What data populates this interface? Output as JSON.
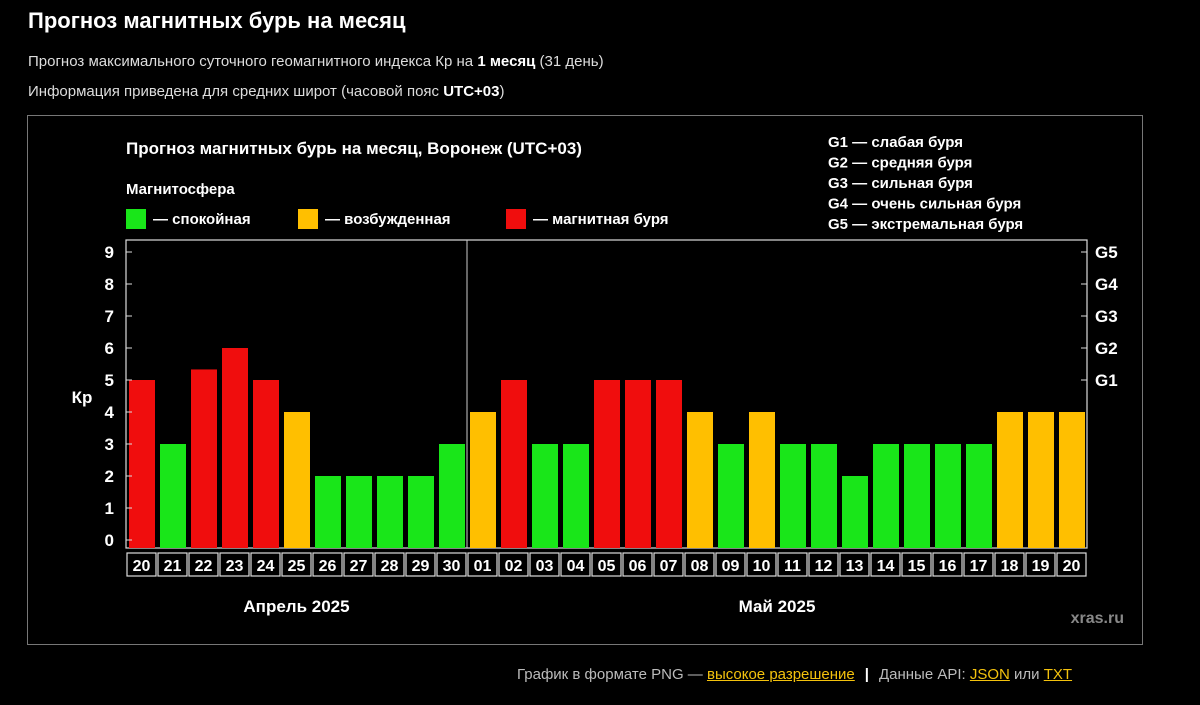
{
  "page": {
    "title": "Прогноз магнитных бурь на месяц",
    "sub1_pre": "Прогноз максимального суточного геомагнитного индекса Кр на ",
    "sub1_bold": "1 месяц",
    "sub1_post": " (31 день)",
    "sub2_pre": "Информация приведена для средних широт (часовой пояс ",
    "sub2_bold": "UTC+03",
    "sub2_post": ")"
  },
  "footer": {
    "png_text": "График в формате PNG — ",
    "png_link": "высокое разрешение",
    "sep": "|",
    "api_text": "Данные API: ",
    "json_link": "JSON",
    "or_text": " или ",
    "txt_link": "TXT"
  },
  "colors": {
    "calm": "#19e619",
    "excited": "#ffbf00",
    "storm": "#f00d0d"
  },
  "chart_data": {
    "type": "bar",
    "title": "Прогноз магнитных бурь на месяц, Воронеж (UTC+03)",
    "legend_title": "Магнитосфера",
    "legend": [
      {
        "label": "— спокойная",
        "status": "calm"
      },
      {
        "label": "— возбужденная",
        "status": "excited"
      },
      {
        "label": "— магнитная буря",
        "status": "storm"
      }
    ],
    "g_scale": [
      "G1 — слабая буря",
      "G2 — средняя буря",
      "G3 — сильная буря",
      "G4 — очень сильная буря",
      "G5 — экстремальная буря"
    ],
    "ylabel": "Кр",
    "ylim": [
      0,
      9
    ],
    "yticks": [
      0,
      1,
      2,
      3,
      4,
      5,
      6,
      7,
      8,
      9
    ],
    "right_ticks": [
      {
        "value": 5,
        "label": "G1"
      },
      {
        "value": 6,
        "label": "G2"
      },
      {
        "value": 7,
        "label": "G3"
      },
      {
        "value": 8,
        "label": "G4"
      },
      {
        "value": 9,
        "label": "G5"
      }
    ],
    "categories": [
      "20",
      "21",
      "22",
      "23",
      "24",
      "25",
      "26",
      "27",
      "28",
      "29",
      "30",
      "01",
      "02",
      "03",
      "04",
      "05",
      "06",
      "07",
      "08",
      "09",
      "10",
      "11",
      "12",
      "13",
      "14",
      "15",
      "16",
      "17",
      "18",
      "19",
      "20"
    ],
    "values": [
      5,
      3,
      5.33,
      6,
      5,
      4,
      2,
      2,
      2,
      2,
      3,
      4,
      5,
      3,
      3,
      5,
      5,
      5,
      4,
      3,
      4,
      3,
      3,
      2,
      3,
      3,
      3,
      3,
      4,
      4,
      4
    ],
    "status": [
      "storm",
      "calm",
      "storm",
      "storm",
      "storm",
      "excited",
      "calm",
      "calm",
      "calm",
      "calm",
      "calm",
      "excited",
      "storm",
      "calm",
      "calm",
      "storm",
      "storm",
      "storm",
      "excited",
      "calm",
      "excited",
      "calm",
      "calm",
      "calm",
      "calm",
      "calm",
      "calm",
      "calm",
      "excited",
      "excited",
      "excited"
    ],
    "months": [
      {
        "label": "Апрель 2025",
        "start": 0,
        "count": 11
      },
      {
        "label": "Май 2025",
        "start": 11,
        "count": 20
      }
    ],
    "watermark": "xras.ru"
  }
}
